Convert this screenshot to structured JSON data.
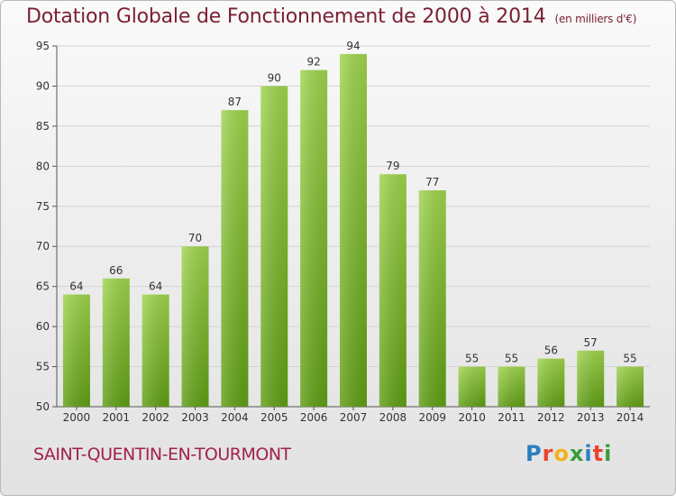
{
  "header": {
    "title": "Dotation Globale de Fonctionnement de 2000 à 2014",
    "subtitle": "(en milliers d'€)"
  },
  "footer": {
    "commune": "SAINT-QUENTIN-EN-TOURMONT",
    "logo_text": "Proxiti"
  },
  "colors": {
    "title": "#7a1f33",
    "commune": "#a0224a",
    "bar_top": "#9fd44d",
    "bar_bottom": "#5f9e14",
    "grid": "#d4d4d4"
  },
  "chart_data": {
    "type": "bar",
    "title": "Dotation Globale de Fonctionnement de 2000 à 2014",
    "xlabel": "",
    "ylabel": "",
    "categories": [
      "2000",
      "2001",
      "2002",
      "2003",
      "2004",
      "2005",
      "2006",
      "2007",
      "2008",
      "2009",
      "2010",
      "2011",
      "2012",
      "2013",
      "2014"
    ],
    "values": [
      64,
      66,
      64,
      70,
      87,
      90,
      92,
      94,
      79,
      77,
      55,
      55,
      56,
      57,
      55
    ],
    "ylim": [
      50,
      95
    ],
    "yticks": [
      50,
      55,
      60,
      65,
      70,
      75,
      80,
      85,
      90,
      95
    ],
    "grid": true
  }
}
